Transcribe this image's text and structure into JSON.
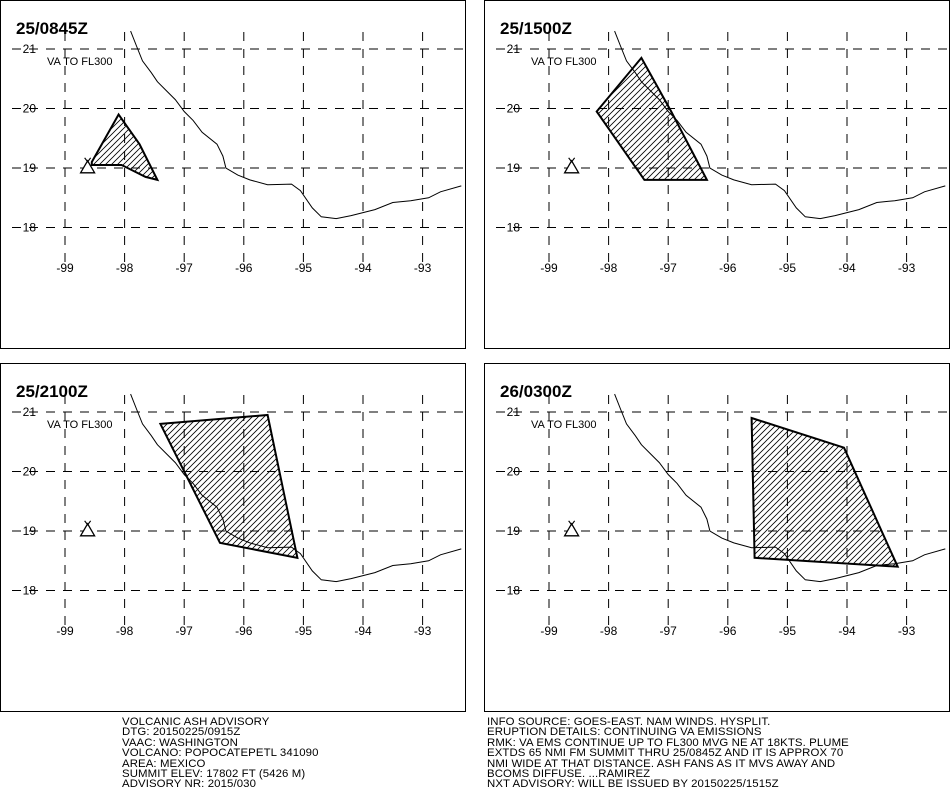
{
  "panels": [
    {
      "time": "25/0845Z",
      "level": "VA TO FL300"
    },
    {
      "time": "25/1500Z",
      "level": "VA TO FL300"
    },
    {
      "time": "25/2100Z",
      "level": "VA TO FL300"
    },
    {
      "time": "26/0300Z",
      "level": "VA TO FL300"
    }
  ],
  "axes": {
    "lon_labels": [
      "-99",
      "-98",
      "-97",
      "-96",
      "-95",
      "-94",
      "-93"
    ],
    "lat_labels": [
      "21",
      "20",
      "19",
      "18"
    ]
  },
  "advisory_left": {
    "line1": "VOLCANIC ASH ADVISORY",
    "line2": "DTG: 20150225/0915Z",
    "line3": "VAAC: WASHINGTON",
    "line4": "VOLCANO: POPOCATEPETL 341090",
    "line5": "AREA: MEXICO",
    "line6": "SUMMIT ELEV: 17802 FT (5426 M)",
    "line7": "ADVISORY NR: 2015/030"
  },
  "advisory_right": {
    "line1": "INFO SOURCE: GOES-EAST. NAM WINDS. HYSPLIT.",
    "line2": "ERUPTION DETAILS: CONTINUING VA EMISSIONS",
    "line3": "RMK: VA EMS CONTINUE UP TO FL300 MVG NE AT 18KTS. PLUME",
    "line4": "EXTDS 65 NMI FM SUMMIT THRU 25/0845Z AND IT IS APPROX 70",
    "line5": "NMI WIDE AT THAT DISTANCE. ASH FANS AS IT MVS AWAY AND",
    "line6": "BCOMS DIFFUSE. ...RAMIREZ",
    "line7": "NXT ADVISORY: WILL BE ISSUED BY 20150225/1515Z"
  },
  "volcano": {
    "name": "POPOCATEPETL",
    "lat": 19.02,
    "lon": -98.62,
    "icon": "volcano-triangle-icon"
  },
  "ash_polygons": [
    [
      [
        -98.55,
        19.1
      ],
      [
        -98.1,
        19.9
      ],
      [
        -97.75,
        19.4
      ],
      [
        -97.45,
        18.8
      ],
      [
        -97.65,
        18.85
      ],
      [
        -98.05,
        19.05
      ],
      [
        -98.55,
        19.05
      ]
    ],
    [
      [
        -98.2,
        19.95
      ],
      [
        -97.45,
        20.85
      ],
      [
        -96.95,
        19.95
      ],
      [
        -96.35,
        18.8
      ],
      [
        -97.4,
        18.8
      ]
    ],
    [
      [
        -97.4,
        20.8
      ],
      [
        -95.6,
        20.95
      ],
      [
        -95.1,
        18.55
      ],
      [
        -96.4,
        18.8
      ]
    ],
    [
      [
        -95.6,
        20.9
      ],
      [
        -94.05,
        20.4
      ],
      [
        -93.15,
        18.4
      ],
      [
        -95.55,
        18.55
      ]
    ]
  ]
}
